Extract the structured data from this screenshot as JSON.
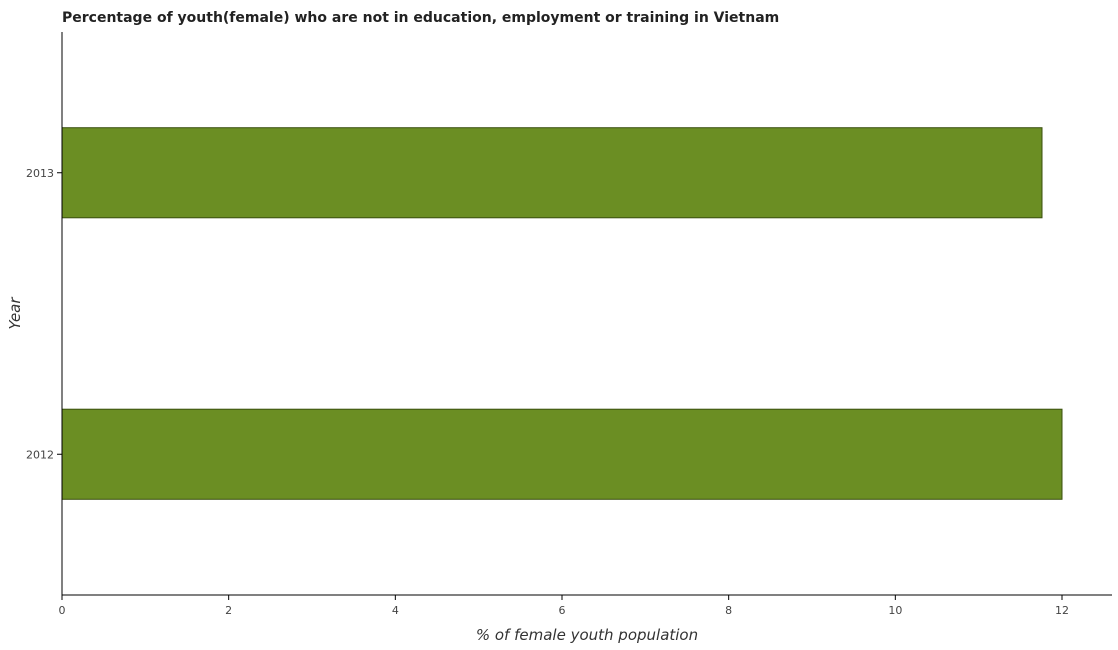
{
  "chart_data": {
    "type": "bar",
    "orientation": "horizontal",
    "title": "Percentage of youth(female) who are not in education, employment or training in Vietnam",
    "xlabel": "% of female youth population",
    "ylabel": "Year",
    "categories": [
      "2013",
      "2012"
    ],
    "values": [
      11.76,
      12.0
    ],
    "xlim": [
      0,
      12.6
    ],
    "xticks": [
      0,
      2,
      4,
      6,
      8,
      10,
      12
    ],
    "xtick_labels": [
      "0",
      "2",
      "4",
      "6",
      "8",
      "10",
      "12"
    ],
    "grid": false,
    "bar_color": "#6b8e23",
    "bar_edge_color": "#3a4f0e"
  }
}
